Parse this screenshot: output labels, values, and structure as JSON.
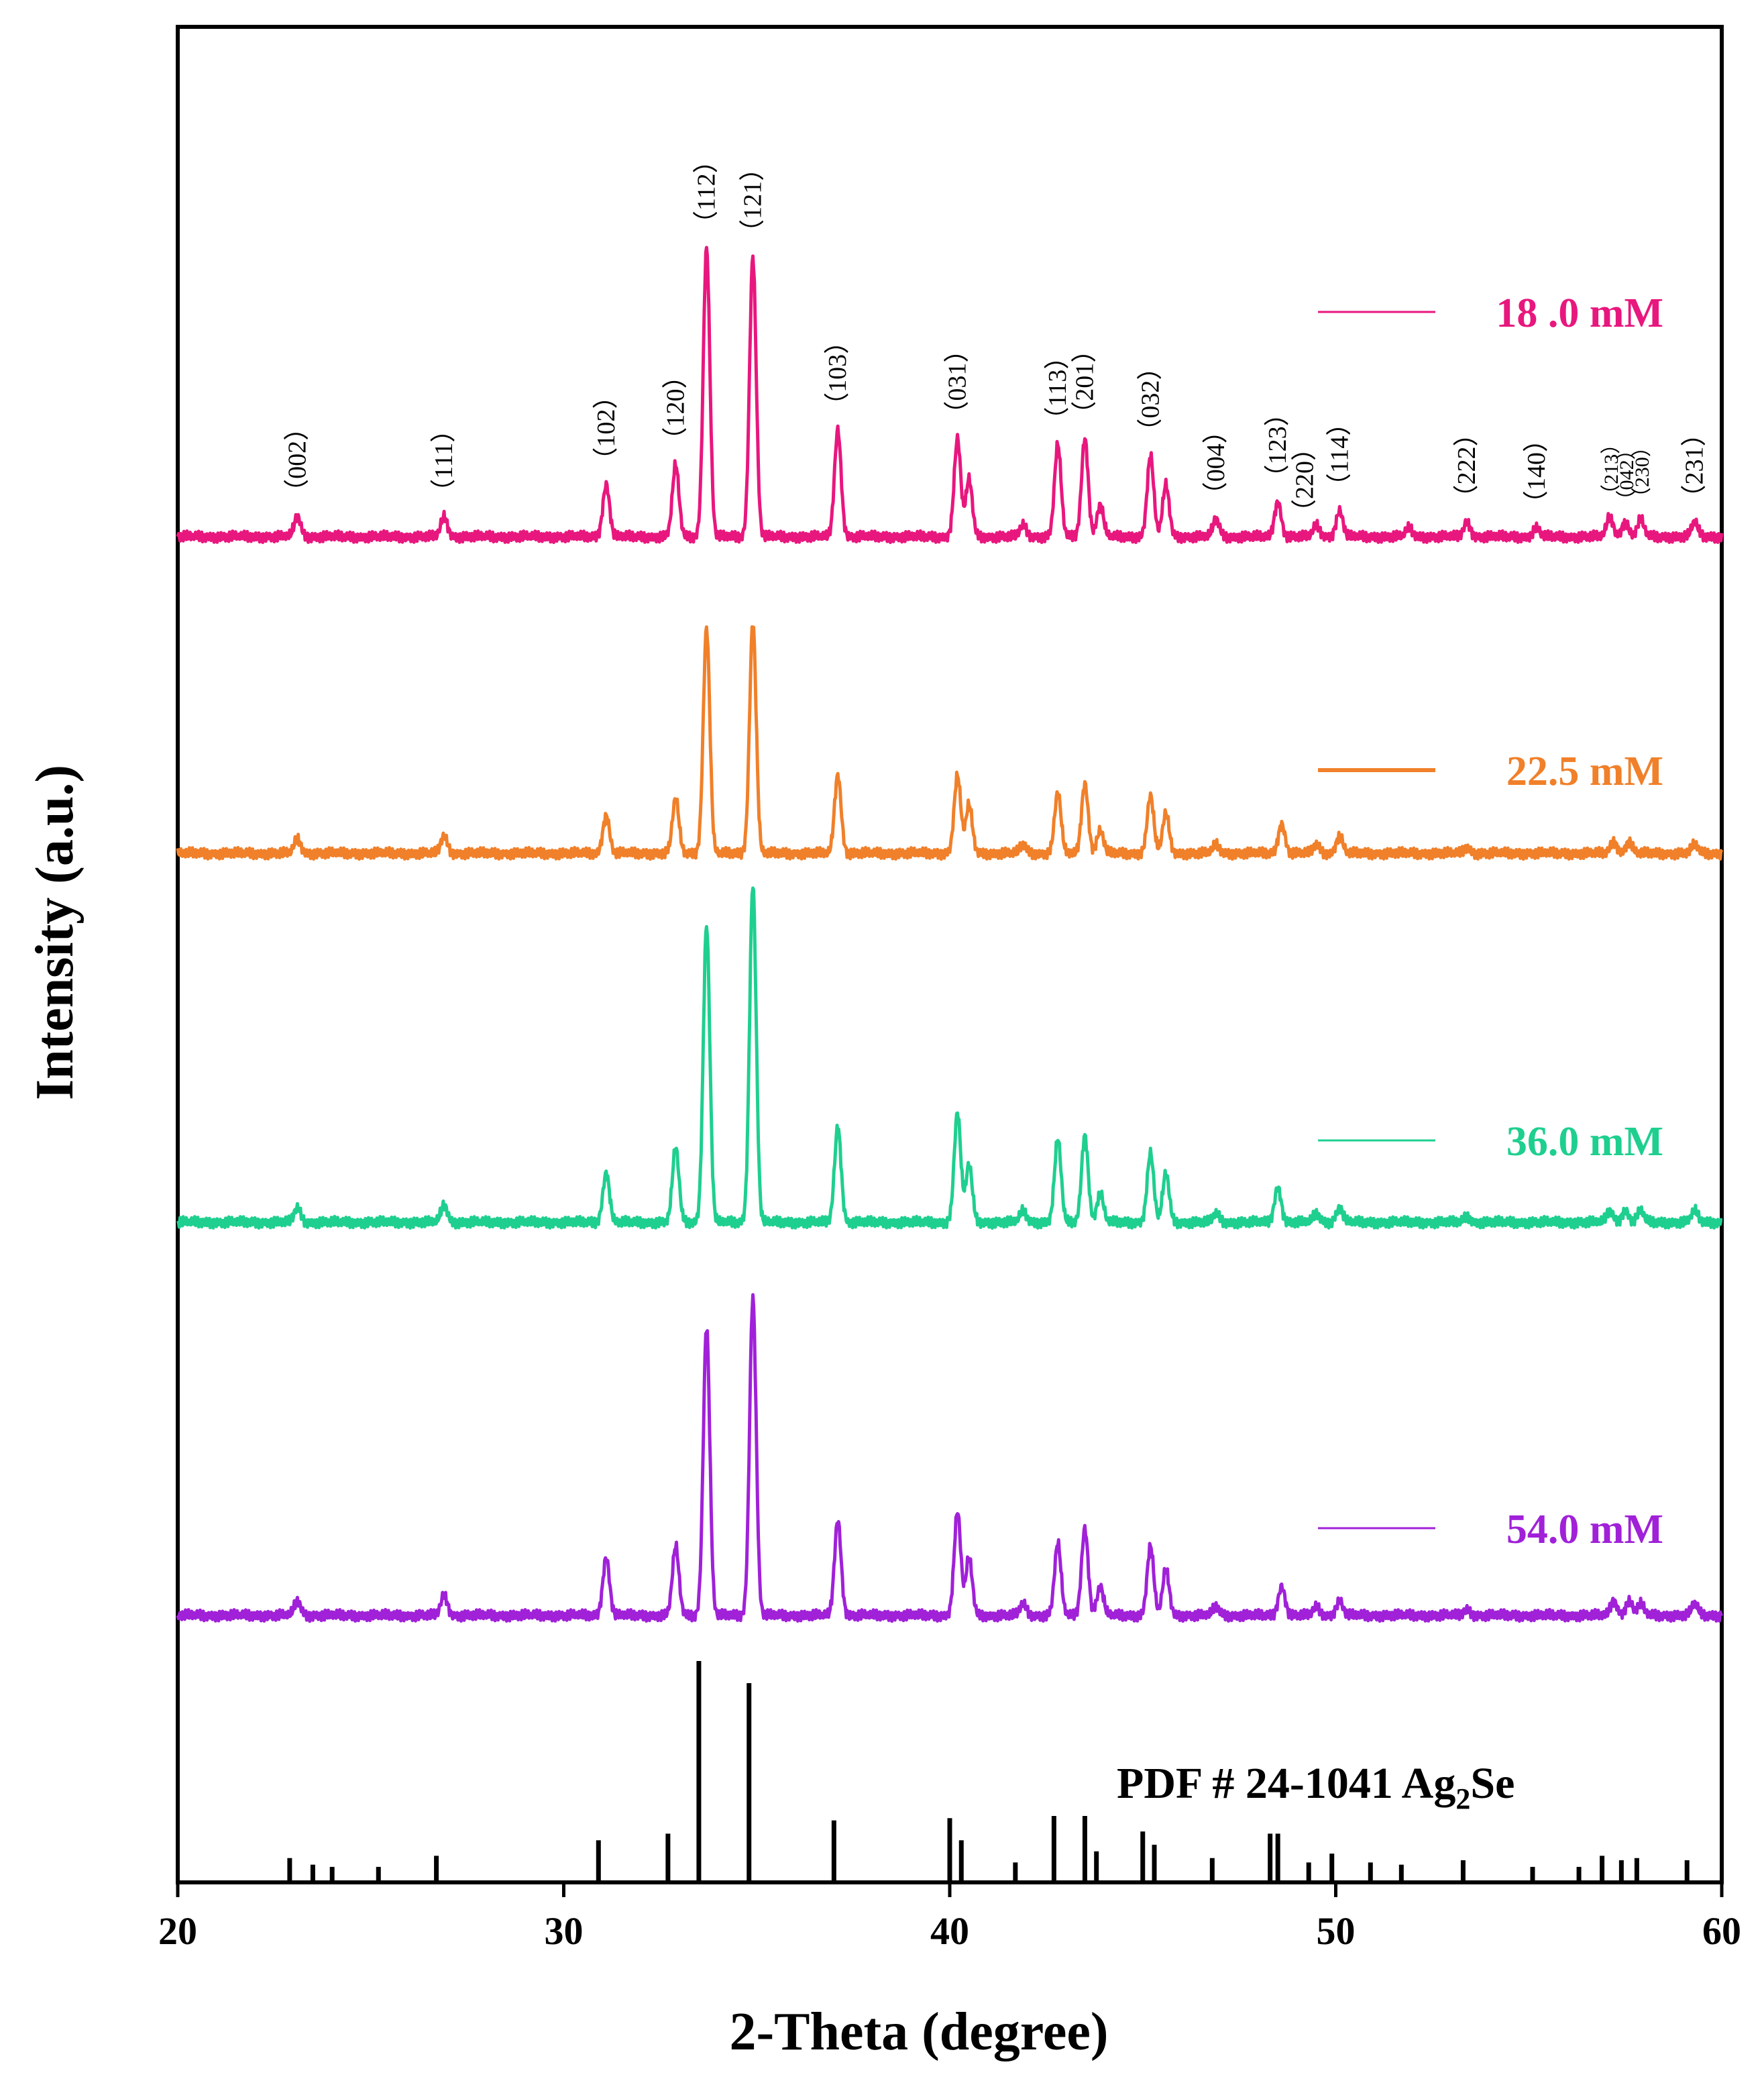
{
  "chart_data": {
    "type": "line",
    "title": "",
    "xlabel": "2-Theta (degree)",
    "ylabel": "Intensity (a.u.)",
    "xlim": [
      20,
      60
    ],
    "xticks": [
      20,
      30,
      40,
      50,
      60
    ],
    "xtick_labels": [
      "20",
      "30",
      "40",
      "50",
      "60"
    ],
    "y_ticks_shown": false,
    "grid": false,
    "series": [
      {
        "name": "18 .0 mM",
        "color": "#e8177e",
        "label_position": "right",
        "peaks": [
          {
            "x": 23.1,
            "h": 0.07
          },
          {
            "x": 26.9,
            "h": 0.07
          },
          {
            "x": 31.1,
            "h": 0.18
          },
          {
            "x": 32.9,
            "h": 0.25
          },
          {
            "x": 33.7,
            "h": 1.0
          },
          {
            "x": 34.9,
            "h": 0.97
          },
          {
            "x": 37.1,
            "h": 0.37
          },
          {
            "x": 40.2,
            "h": 0.34
          },
          {
            "x": 40.5,
            "h": 0.2
          },
          {
            "x": 41.9,
            "h": 0.04
          },
          {
            "x": 42.8,
            "h": 0.32
          },
          {
            "x": 43.5,
            "h": 0.34
          },
          {
            "x": 43.9,
            "h": 0.11
          },
          {
            "x": 45.2,
            "h": 0.28
          },
          {
            "x": 45.6,
            "h": 0.18
          },
          {
            "x": 46.9,
            "h": 0.06
          },
          {
            "x": 48.5,
            "h": 0.12
          },
          {
            "x": 49.5,
            "h": 0.04
          },
          {
            "x": 50.1,
            "h": 0.09
          },
          {
            "x": 51.9,
            "h": 0.03
          },
          {
            "x": 53.4,
            "h": 0.05
          },
          {
            "x": 55.2,
            "h": 0.03
          },
          {
            "x": 57.1,
            "h": 0.07
          },
          {
            "x": 57.5,
            "h": 0.05
          },
          {
            "x": 57.9,
            "h": 0.06
          },
          {
            "x": 59.3,
            "h": 0.05
          }
        ]
      },
      {
        "name": "22.5 mM",
        "color": "#f0802a",
        "label_position": "right",
        "peaks": [
          {
            "x": 23.1,
            "h": 0.05
          },
          {
            "x": 26.9,
            "h": 0.06
          },
          {
            "x": 31.1,
            "h": 0.13
          },
          {
            "x": 32.9,
            "h": 0.19
          },
          {
            "x": 33.7,
            "h": 0.78
          },
          {
            "x": 34.9,
            "h": 0.8
          },
          {
            "x": 37.1,
            "h": 0.27
          },
          {
            "x": 40.2,
            "h": 0.27
          },
          {
            "x": 40.5,
            "h": 0.17
          },
          {
            "x": 41.9,
            "h": 0.03
          },
          {
            "x": 42.8,
            "h": 0.21
          },
          {
            "x": 43.5,
            "h": 0.24
          },
          {
            "x": 43.9,
            "h": 0.08
          },
          {
            "x": 45.2,
            "h": 0.2
          },
          {
            "x": 45.6,
            "h": 0.14
          },
          {
            "x": 46.9,
            "h": 0.03
          },
          {
            "x": 48.6,
            "h": 0.1
          },
          {
            "x": 49.5,
            "h": 0.03
          },
          {
            "x": 50.1,
            "h": 0.06
          },
          {
            "x": 53.4,
            "h": 0.02
          },
          {
            "x": 57.2,
            "h": 0.04
          },
          {
            "x": 57.6,
            "h": 0.04
          },
          {
            "x": 59.3,
            "h": 0.03
          }
        ]
      },
      {
        "name": "36.0 mM",
        "color": "#1fcf8f",
        "label_position": "right",
        "peaks": [
          {
            "x": 23.1,
            "h": 0.05
          },
          {
            "x": 26.9,
            "h": 0.06
          },
          {
            "x": 31.1,
            "h": 0.17
          },
          {
            "x": 32.9,
            "h": 0.26
          },
          {
            "x": 33.7,
            "h": 1.03
          },
          {
            "x": 34.9,
            "h": 1.17
          },
          {
            "x": 37.1,
            "h": 0.33
          },
          {
            "x": 40.2,
            "h": 0.38
          },
          {
            "x": 40.5,
            "h": 0.2
          },
          {
            "x": 41.9,
            "h": 0.04
          },
          {
            "x": 42.8,
            "h": 0.29
          },
          {
            "x": 43.5,
            "h": 0.3
          },
          {
            "x": 43.9,
            "h": 0.1
          },
          {
            "x": 45.2,
            "h": 0.24
          },
          {
            "x": 45.6,
            "h": 0.17
          },
          {
            "x": 46.9,
            "h": 0.03
          },
          {
            "x": 48.5,
            "h": 0.12
          },
          {
            "x": 49.5,
            "h": 0.03
          },
          {
            "x": 50.1,
            "h": 0.05
          },
          {
            "x": 53.4,
            "h": 0.02
          },
          {
            "x": 57.1,
            "h": 0.04
          },
          {
            "x": 57.5,
            "h": 0.04
          },
          {
            "x": 57.9,
            "h": 0.04
          },
          {
            "x": 59.3,
            "h": 0.04
          }
        ]
      },
      {
        "name": "54.0 mM",
        "color": "#a021d8",
        "label_position": "right",
        "peaks": [
          {
            "x": 23.1,
            "h": 0.05
          },
          {
            "x": 26.9,
            "h": 0.07
          },
          {
            "x": 31.1,
            "h": 0.2
          },
          {
            "x": 32.9,
            "h": 0.24
          },
          {
            "x": 33.7,
            "h": 1.0
          },
          {
            "x": 34.9,
            "h": 1.1
          },
          {
            "x": 37.1,
            "h": 0.33
          },
          {
            "x": 40.2,
            "h": 0.36
          },
          {
            "x": 40.5,
            "h": 0.2
          },
          {
            "x": 41.9,
            "h": 0.04
          },
          {
            "x": 42.8,
            "h": 0.25
          },
          {
            "x": 43.5,
            "h": 0.3
          },
          {
            "x": 43.9,
            "h": 0.1
          },
          {
            "x": 45.2,
            "h": 0.24
          },
          {
            "x": 45.6,
            "h": 0.16
          },
          {
            "x": 46.9,
            "h": 0.03
          },
          {
            "x": 48.6,
            "h": 0.1
          },
          {
            "x": 49.5,
            "h": 0.03
          },
          {
            "x": 50.1,
            "h": 0.05
          },
          {
            "x": 53.4,
            "h": 0.02
          },
          {
            "x": 57.2,
            "h": 0.05
          },
          {
            "x": 57.6,
            "h": 0.05
          },
          {
            "x": 57.9,
            "h": 0.04
          },
          {
            "x": 59.3,
            "h": 0.04
          }
        ]
      }
    ],
    "reference": {
      "label_prefix": "PDF # 24-1041 Ag",
      "label_subscript": "2",
      "label_suffix": "Se",
      "color": "#000000",
      "lines": [
        {
          "x": 22.9,
          "h": 0.11
        },
        {
          "x": 23.5,
          "h": 0.08
        },
        {
          "x": 24.0,
          "h": 0.07
        },
        {
          "x": 25.2,
          "h": 0.07
        },
        {
          "x": 26.7,
          "h": 0.12
        },
        {
          "x": 30.9,
          "h": 0.19
        },
        {
          "x": 32.7,
          "h": 0.22
        },
        {
          "x": 33.5,
          "h": 1.0
        },
        {
          "x": 34.8,
          "h": 0.9
        },
        {
          "x": 37.0,
          "h": 0.28
        },
        {
          "x": 40.0,
          "h": 0.29
        },
        {
          "x": 40.3,
          "h": 0.19
        },
        {
          "x": 41.7,
          "h": 0.09
        },
        {
          "x": 42.7,
          "h": 0.3
        },
        {
          "x": 43.5,
          "h": 0.3
        },
        {
          "x": 43.8,
          "h": 0.14
        },
        {
          "x": 45.0,
          "h": 0.23
        },
        {
          "x": 45.3,
          "h": 0.17
        },
        {
          "x": 46.8,
          "h": 0.11
        },
        {
          "x": 48.3,
          "h": 0.22
        },
        {
          "x": 48.5,
          "h": 0.22
        },
        {
          "x": 49.3,
          "h": 0.09
        },
        {
          "x": 49.9,
          "h": 0.13
        },
        {
          "x": 50.9,
          "h": 0.09
        },
        {
          "x": 51.7,
          "h": 0.08
        },
        {
          "x": 53.3,
          "h": 0.1
        },
        {
          "x": 55.1,
          "h": 0.07
        },
        {
          "x": 56.3,
          "h": 0.07
        },
        {
          "x": 56.9,
          "h": 0.12
        },
        {
          "x": 57.4,
          "h": 0.1
        },
        {
          "x": 57.8,
          "h": 0.11
        },
        {
          "x": 59.1,
          "h": 0.1
        }
      ]
    },
    "miller_indices": [
      {
        "x": 23.1,
        "label": "（002）",
        "size": "normal"
      },
      {
        "x": 26.9,
        "label": "（111）",
        "size": "normal"
      },
      {
        "x": 31.1,
        "label": "（102）",
        "size": "normal"
      },
      {
        "x": 32.9,
        "label": "（120）",
        "size": "normal"
      },
      {
        "x": 33.7,
        "label": "（112）",
        "size": "normal"
      },
      {
        "x": 34.9,
        "label": "（121）",
        "size": "normal"
      },
      {
        "x": 37.1,
        "label": "（103）",
        "size": "normal"
      },
      {
        "x": 40.2,
        "label": "（031）",
        "size": "normal"
      },
      {
        "x": 42.8,
        "label": "（113）",
        "size": "normal"
      },
      {
        "x": 43.5,
        "label": "（201）",
        "size": "normal"
      },
      {
        "x": 45.2,
        "label": "（032）",
        "size": "normal"
      },
      {
        "x": 46.9,
        "label": "（004）",
        "size": "normal"
      },
      {
        "x": 48.5,
        "label": "（123）",
        "size": "normal"
      },
      {
        "x": 49.2,
        "label": "（220）",
        "size": "normal"
      },
      {
        "x": 50.1,
        "label": "（114）",
        "size": "normal"
      },
      {
        "x": 53.4,
        "label": "（222）",
        "size": "normal"
      },
      {
        "x": 55.2,
        "label": "（140）",
        "size": "normal"
      },
      {
        "x": 57.1,
        "label": "（213）",
        "size": "small"
      },
      {
        "x": 57.5,
        "label": "（042）",
        "size": "small"
      },
      {
        "x": 57.9,
        "label": "（230）",
        "size": "small"
      },
      {
        "x": 59.3,
        "label": "（231）",
        "size": "normal"
      }
    ]
  }
}
